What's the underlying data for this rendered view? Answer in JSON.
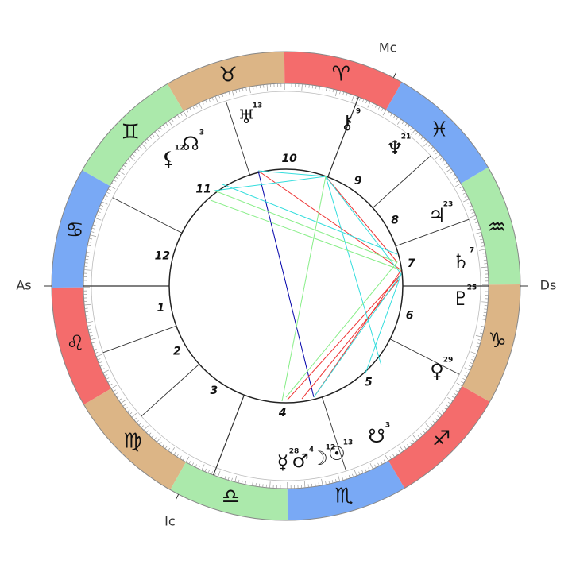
{
  "axes": {
    "asc": "As",
    "dsc": "Ds",
    "mc": "Mc",
    "ic": "Ic"
  },
  "signs": [
    "♈︎",
    "♉︎",
    "♊︎",
    "♋︎",
    "♌︎",
    "♍︎",
    "♎︎",
    "♏︎",
    "♐︎",
    "♑︎",
    "♒︎",
    "♓︎"
  ],
  "houses": [
    "1",
    "2",
    "3",
    "4",
    "5",
    "6",
    "7",
    "8",
    "9",
    "10",
    "11",
    "12"
  ],
  "planets": [
    {
      "glyph": "♅",
      "degree": 13
    },
    {
      "glyph": "⚷",
      "degree": 9
    },
    {
      "glyph": "♆",
      "degree": 21
    },
    {
      "glyph": "♃",
      "degree": 23
    },
    {
      "glyph": "♄",
      "degree": 7
    },
    {
      "glyph": "♇",
      "degree": 25
    },
    {
      "glyph": "♀",
      "degree": 29
    },
    {
      "glyph": "☋",
      "degree": 3
    },
    {
      "glyph": "☉",
      "degree": 13
    },
    {
      "glyph": "☽",
      "degree": 12
    },
    {
      "glyph": "♂",
      "degree": 4
    },
    {
      "glyph": "☿",
      "degree": 28
    },
    {
      "glyph": "⚸",
      "degree": 12
    },
    {
      "glyph": "☊",
      "degree": 3
    }
  ]
}
